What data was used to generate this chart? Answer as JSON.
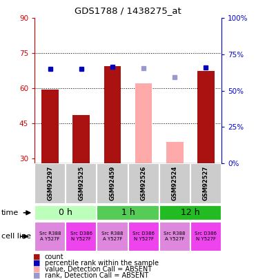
{
  "title": "GDS1788 / 1438275_at",
  "samples": [
    "GSM92297",
    "GSM92525",
    "GSM92459",
    "GSM92526",
    "GSM92524",
    "GSM92527"
  ],
  "count_values": [
    59.5,
    48.5,
    69.5,
    null,
    null,
    67.5
  ],
  "count_absent_values": [
    null,
    null,
    null,
    62.0,
    37.0,
    null
  ],
  "rank_values": [
    65.0,
    65.0,
    66.5,
    null,
    null,
    66.0
  ],
  "rank_absent_values": [
    null,
    null,
    null,
    65.5,
    59.5,
    null
  ],
  "ylim_left": [
    28,
    90
  ],
  "ylim_right": [
    0,
    100
  ],
  "yticks_left": [
    30,
    45,
    60,
    75,
    90
  ],
  "yticks_right": [
    0,
    25,
    50,
    75,
    100
  ],
  "ytick_labels_right": [
    "0%",
    "25%",
    "50%",
    "75%",
    "100%"
  ],
  "hlines": [
    75,
    60,
    45
  ],
  "bar_color_present": "#AA1111",
  "bar_color_absent": "#FFAAAA",
  "rank_color_present": "#0000BB",
  "rank_color_absent": "#9999CC",
  "time_groups": [
    {
      "label": "0 h",
      "cols": [
        0,
        1
      ],
      "color": "#BBFFBB"
    },
    {
      "label": "1 h",
      "cols": [
        2,
        3
      ],
      "color": "#55CC55"
    },
    {
      "label": "12 h",
      "cols": [
        4,
        5
      ],
      "color": "#22BB22"
    }
  ],
  "cell_lines": [
    {
      "label": "Src R388\nA Y527F",
      "col": 0,
      "color": "#DD88DD"
    },
    {
      "label": "Src D386\nN Y527F",
      "col": 1,
      "color": "#EE44EE"
    },
    {
      "label": "Src R388\nA Y527F",
      "col": 2,
      "color": "#DD88DD"
    },
    {
      "label": "Src D386\nN Y527F",
      "col": 3,
      "color": "#EE44EE"
    },
    {
      "label": "Src R388\nA Y527F",
      "col": 4,
      "color": "#DD88DD"
    },
    {
      "label": "Src D386\nN Y527F",
      "col": 5,
      "color": "#EE44EE"
    }
  ],
  "legend_items": [
    {
      "label": "count",
      "color": "#AA1111"
    },
    {
      "label": "percentile rank within the sample",
      "color": "#0000BB"
    },
    {
      "label": "value, Detection Call = ABSENT",
      "color": "#FFAAAA"
    },
    {
      "label": "rank, Detection Call = ABSENT",
      "color": "#9999CC"
    }
  ],
  "left_axis_color": "#CC0000",
  "right_axis_color": "#0000CC",
  "time_label": "time",
  "cell_line_label": "cell line",
  "sample_box_color": "#CCCCCC",
  "bar_width": 0.55
}
